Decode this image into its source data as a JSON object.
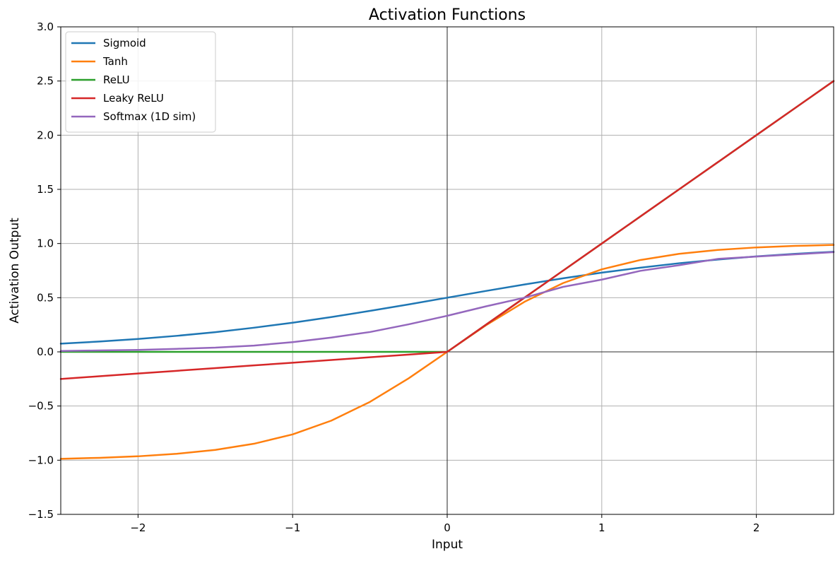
{
  "chart_data": {
    "type": "line",
    "title": "Activation Functions",
    "xlabel": "Input",
    "ylabel": "Activation Output",
    "xlim": [
      -2.5,
      2.5
    ],
    "ylim": [
      -1.5,
      3.0
    ],
    "x_ticks": [
      -2,
      -1,
      0,
      1,
      2
    ],
    "x_tick_labels": [
      "−2",
      "−1",
      "0",
      "1",
      "2"
    ],
    "y_ticks": [
      -1.5,
      -1.0,
      -0.5,
      0.0,
      0.5,
      1.0,
      1.5,
      2.0,
      2.5,
      3.0
    ],
    "y_tick_labels": [
      "−1.5",
      "−1.0",
      "−0.5",
      "0.0",
      "0.5",
      "1.0",
      "1.5",
      "2.0",
      "2.5",
      "3.0"
    ],
    "grid": true,
    "legend_position": "upper-left",
    "zero_lines": true,
    "x": [
      -2.5,
      -2.25,
      -2.0,
      -1.75,
      -1.5,
      -1.25,
      -1.0,
      -0.75,
      -0.5,
      -0.25,
      0.0,
      0.25,
      0.5,
      0.75,
      1.0,
      1.25,
      1.5,
      1.75,
      2.0,
      2.25,
      2.5
    ],
    "series": [
      {
        "name": "Sigmoid",
        "color": "#1f77b4",
        "values": [
          0.076,
          0.095,
          0.119,
          0.148,
          0.182,
          0.223,
          0.269,
          0.321,
          0.378,
          0.438,
          0.5,
          0.562,
          0.622,
          0.679,
          0.731,
          0.777,
          0.818,
          0.852,
          0.881,
          0.905,
          0.924
        ]
      },
      {
        "name": "Tanh",
        "color": "#ff7f0e",
        "values": [
          -0.987,
          -0.978,
          -0.964,
          -0.941,
          -0.905,
          -0.848,
          -0.762,
          -0.635,
          -0.462,
          -0.245,
          0.0,
          0.245,
          0.462,
          0.635,
          0.762,
          0.848,
          0.905,
          0.941,
          0.964,
          0.978,
          0.987
        ]
      },
      {
        "name": "ReLU",
        "color": "#2ca02c",
        "values": [
          0.0,
          0.0,
          0.0,
          0.0,
          0.0,
          0.0,
          0.0,
          0.0,
          0.0,
          0.0,
          0.0,
          0.25,
          0.5,
          0.75,
          1.0,
          1.25,
          1.5,
          1.75,
          2.0,
          2.25,
          2.5
        ]
      },
      {
        "name": "Leaky ReLU",
        "color": "#d62728",
        "values": [
          -0.25,
          -0.225,
          -0.2,
          -0.175,
          -0.15,
          -0.125,
          -0.1,
          -0.075,
          -0.05,
          -0.025,
          0.0,
          0.25,
          0.5,
          0.75,
          1.0,
          1.25,
          1.5,
          1.75,
          2.0,
          2.25,
          2.5
        ]
      },
      {
        "name": "Softmax (1D sim)",
        "color": "#9467bd",
        "values": [
          0.008,
          0.013,
          0.018,
          0.028,
          0.039,
          0.058,
          0.09,
          0.132,
          0.183,
          0.254,
          0.333,
          0.42,
          0.5,
          0.6,
          0.667,
          0.748,
          0.8,
          0.858,
          0.88,
          0.9,
          0.92
        ]
      }
    ]
  }
}
